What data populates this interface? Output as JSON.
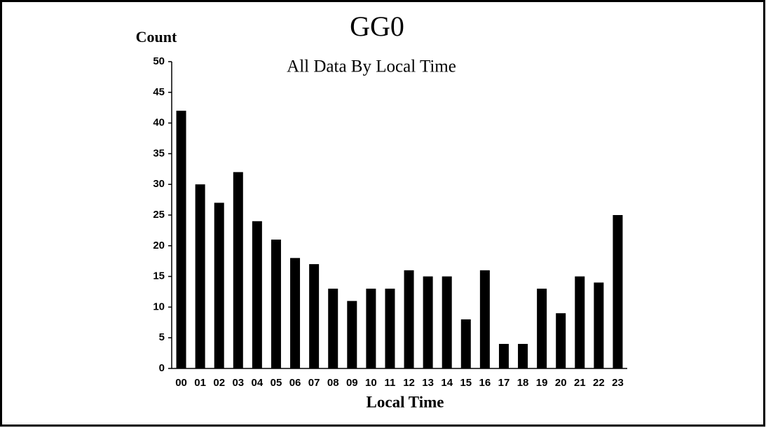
{
  "chart_data": {
    "type": "bar",
    "title": "GG0",
    "subtitle": "All Data By Local Time",
    "y_label": "Count",
    "x_label": "Local Time",
    "categories": [
      "00",
      "01",
      "02",
      "03",
      "04",
      "05",
      "06",
      "07",
      "08",
      "09",
      "10",
      "11",
      "12",
      "13",
      "14",
      "15",
      "16",
      "17",
      "18",
      "19",
      "20",
      "21",
      "22",
      "23"
    ],
    "values": [
      42,
      30,
      27,
      32,
      24,
      21,
      18,
      17,
      13,
      11,
      13,
      13,
      16,
      15,
      15,
      8,
      16,
      4,
      4,
      13,
      9,
      15,
      14,
      25
    ],
    "color": "#000000",
    "ylim": [
      0,
      50
    ],
    "yticks": [
      0,
      5,
      10,
      15,
      20,
      25,
      30,
      35,
      40,
      45,
      50
    ],
    "grid": false
  }
}
